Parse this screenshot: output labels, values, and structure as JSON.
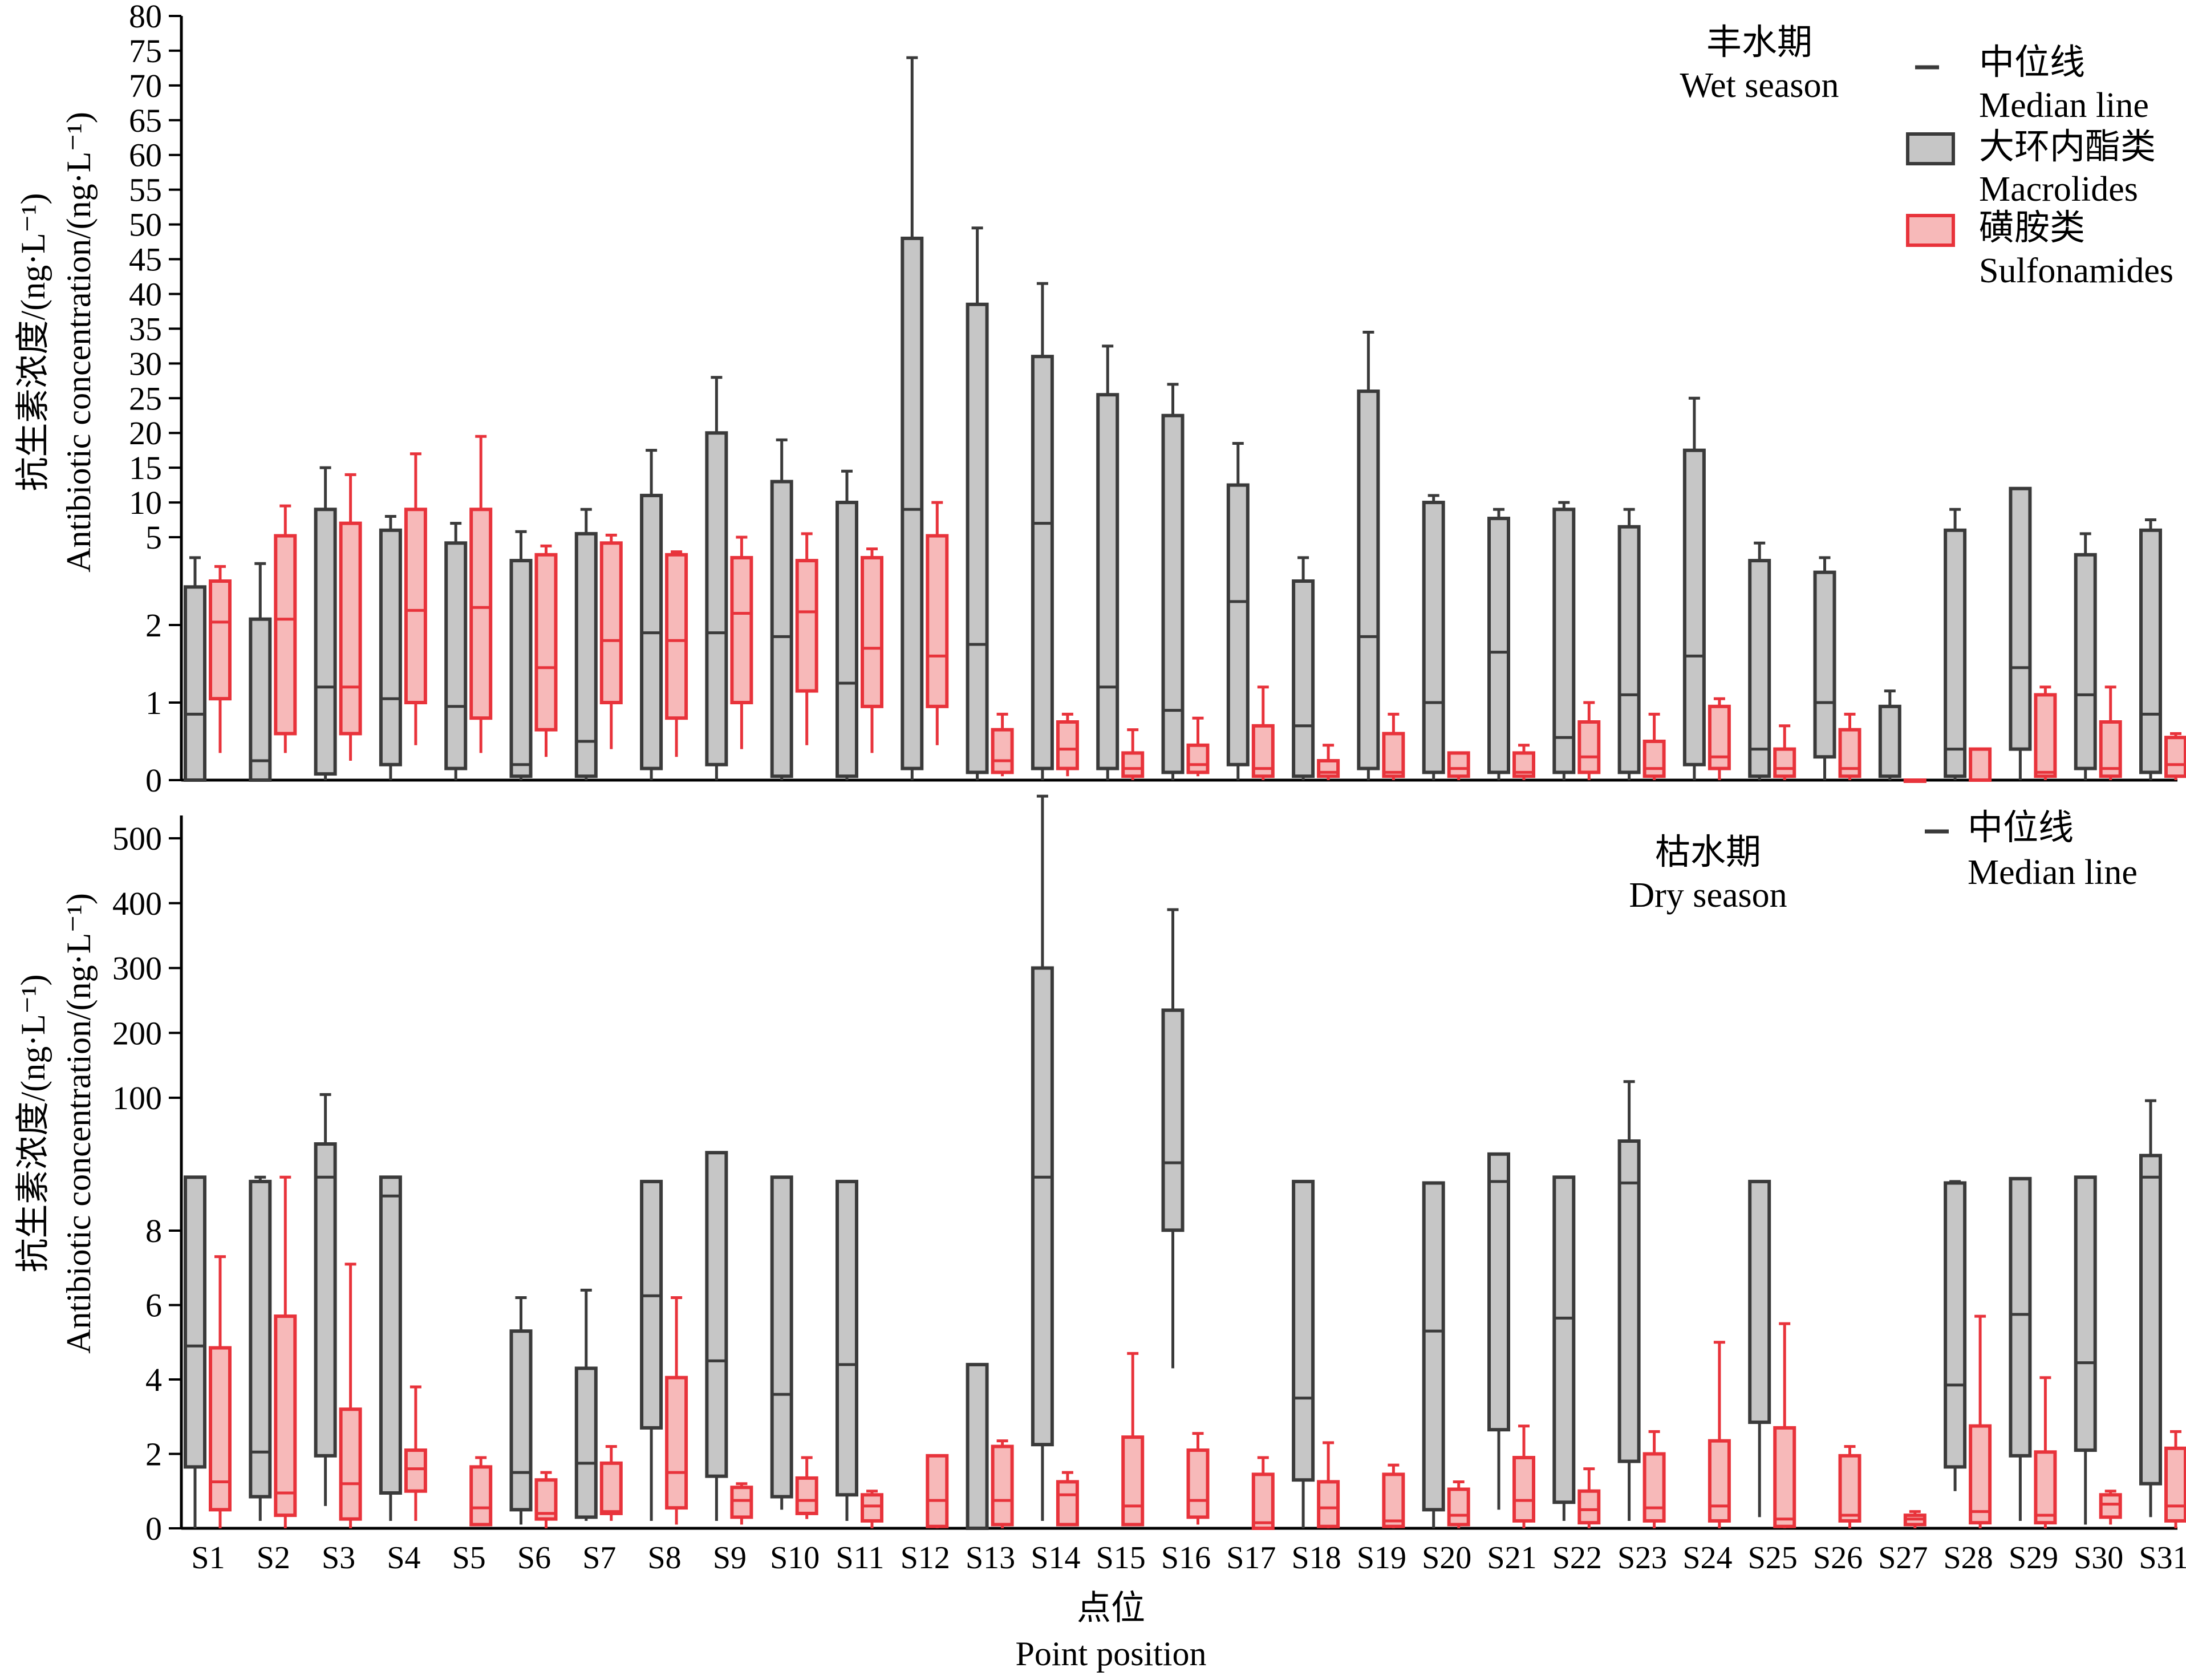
{
  "chart_data": [
    {
      "type": "box",
      "panel": "top",
      "title_cn": "丰水期",
      "title_en": "Wet season",
      "ylabel_cn": "抗生素浓度/(ng·L⁻¹)",
      "ylabel_en": "Antibiotic concentration/(ng·L⁻¹)",
      "y_ticks": [
        0,
        1,
        2,
        5,
        10,
        15,
        20,
        25,
        30,
        35,
        40,
        45,
        50,
        55,
        60,
        65,
        70,
        75,
        80
      ],
      "y_tick_labels": [
        "0",
        "1",
        "2",
        "5",
        "10",
        "15",
        "20",
        "25",
        "30",
        "35",
        "40",
        "45",
        "50",
        "55",
        "60",
        "65",
        "70",
        "75",
        "80"
      ],
      "y_scale": "piecewise: linear 0-2, then compressed 2-5, linear 5-80",
      "legend": {
        "median_cn": "中位线",
        "median_en": "Median line",
        "macrolides_cn": "大环内酯类",
        "macrolides_en": "Macrolides",
        "sulfonamides_cn": "磺胺类",
        "sulfonamides_en": "Sulfonamides"
      },
      "categories": [
        "S1",
        "S2",
        "S3",
        "S4",
        "S5",
        "S6",
        "S7",
        "S8",
        "S9",
        "S10",
        "S11",
        "S12",
        "S13",
        "S14",
        "S15",
        "S16",
        "S17",
        "S18",
        "S19",
        "S20",
        "S21",
        "S22",
        "S23",
        "S24",
        "S25",
        "S26",
        "S27",
        "S28",
        "S29",
        "S30",
        "S31"
      ],
      "series": [
        {
          "name": "Macrolides",
          "box": [
            [
              0,
              3.3,
              0.85,
              0,
              4.3
            ],
            [
              0,
              2.2,
              0.25,
              0,
              4.1
            ],
            [
              0.08,
              9,
              1.2,
              0,
              15
            ],
            [
              0.2,
              6,
              1.05,
              0,
              8
            ],
            [
              0.15,
              4.8,
              0.95,
              0,
              7
            ],
            [
              0.05,
              4.2,
              0.2,
              0,
              5.8
            ],
            [
              0.05,
              5.5,
              0.5,
              0,
              9
            ],
            [
              0.15,
              11,
              1.9,
              0,
              17.5
            ],
            [
              0.2,
              20,
              1.9,
              0,
              28
            ],
            [
              0.05,
              13,
              1.85,
              0,
              19
            ],
            [
              0.05,
              10,
              1.25,
              0,
              14.5
            ],
            [
              0.15,
              48,
              9,
              0,
              74
            ],
            [
              0.1,
              38.5,
              1.75,
              0,
              49.5
            ],
            [
              0.15,
              31,
              7,
              0,
              41.5
            ],
            [
              0.15,
              25.5,
              1.2,
              0,
              32.5
            ],
            [
              0.1,
              22.5,
              0.9,
              0,
              27
            ],
            [
              0.2,
              12.5,
              2.8,
              0,
              18.5
            ],
            [
              0.05,
              3.5,
              0.7,
              0,
              4.3
            ],
            [
              0.15,
              26,
              1.85,
              0,
              34.5
            ],
            [
              0.1,
              10,
              1,
              0,
              11
            ],
            [
              0.1,
              7.7,
              1.65,
              0,
              9
            ],
            [
              0.1,
              9,
              0.55,
              0,
              10
            ],
            [
              0.1,
              6.5,
              1.1,
              0,
              9
            ],
            [
              0.2,
              17.5,
              1.6,
              0,
              25
            ],
            [
              0.05,
              4.2,
              0.4,
              0,
              4.8
            ],
            [
              0.3,
              3.8,
              1,
              0,
              4.3
            ],
            [
              0.05,
              0.95,
              0.05,
              0,
              1.15
            ],
            [
              0.05,
              6,
              0.4,
              0,
              9
            ],
            [
              0.4,
              12,
              1.45,
              0,
              12
            ],
            [
              0.15,
              4.4,
              1.1,
              0,
              5.5
            ],
            [
              0.1,
              6,
              0.85,
              0,
              7.5
            ]
          ]
        },
        {
          "name": "Sulfonamides",
          "box": [
            [
              1.05,
              3.5,
              2.1,
              0.35,
              4
            ],
            [
              0.6,
              5.2,
              2.2,
              0.35,
              9.5
            ],
            [
              0.6,
              7,
              1.2,
              0.25,
              14
            ],
            [
              1,
              9,
              2.5,
              0.45,
              17
            ],
            [
              0.8,
              9,
              2.6,
              0.35,
              19.5
            ],
            [
              0.65,
              4.4,
              1.45,
              0.3,
              4.7
            ],
            [
              1,
              4.8,
              1.8,
              0.4,
              5.3
            ],
            [
              0.8,
              4.4,
              1.8,
              0.3,
              4.5
            ],
            [
              1,
              4.3,
              2.4,
              0.4,
              5
            ],
            [
              1.15,
              4.2,
              2.45,
              0.45,
              5.5
            ],
            [
              0.95,
              4.3,
              1.7,
              0.35,
              4.6
            ],
            [
              0.95,
              5.2,
              1.6,
              0.45,
              10
            ],
            [
              0.1,
              0.65,
              0.25,
              0.05,
              0.85
            ],
            [
              0.15,
              0.75,
              0.4,
              0.05,
              0.85
            ],
            [
              0.05,
              0.35,
              0.15,
              0,
              0.65
            ],
            [
              0.1,
              0.45,
              0.2,
              0.05,
              0.8
            ],
            [
              0.05,
              0.7,
              0.15,
              0,
              1.2
            ],
            [
              0.05,
              0.25,
              0.1,
              0,
              0.45
            ],
            [
              0.05,
              0.6,
              0.1,
              0,
              0.85
            ],
            [
              0.05,
              0.35,
              0.15,
              0,
              0.35
            ],
            [
              0.05,
              0.35,
              0.1,
              0,
              0.45
            ],
            [
              0.1,
              0.75,
              0.3,
              0,
              1
            ],
            [
              0.05,
              0.5,
              0.15,
              0,
              0.85
            ],
            [
              0.15,
              0.95,
              0.3,
              0,
              1.05
            ],
            [
              0.05,
              0.4,
              0.15,
              0,
              0.7
            ],
            [
              0.05,
              0.65,
              0.15,
              0,
              0.85
            ],
            [
              0,
              0,
              0,
              0,
              0
            ],
            [
              0,
              0.4,
              0,
              0,
              0.4
            ],
            [
              0.05,
              1.1,
              0.1,
              0,
              1.2
            ],
            [
              0.05,
              0.75,
              0.15,
              0,
              1.2
            ],
            [
              0.05,
              0.55,
              0.2,
              0,
              0.6
            ]
          ]
        }
      ]
    },
    {
      "type": "box",
      "panel": "bottom",
      "title_cn": "枯水期",
      "title_en": "Dry season",
      "xlabel_cn": "点位",
      "xlabel_en": "Point position",
      "ylabel_cn": "抗生素浓度/(ng·L⁻¹)",
      "ylabel_en": "Antibiotic concentration/(ng·L⁻¹)",
      "y_ticks": [
        0,
        2,
        4,
        6,
        8,
        100,
        200,
        300,
        400,
        500
      ],
      "y_tick_labels": [
        "0",
        "2",
        "4",
        "6",
        "8",
        "100",
        "200",
        "300",
        "400",
        "500"
      ],
      "y_scale": "piecewise: linear 0-8, compressed 8-100, linear 100-500",
      "legend": {
        "median_cn": "中位线",
        "median_en": "Median line"
      },
      "categories": [
        "S1",
        "S2",
        "S3",
        "S4",
        "S5",
        "S6",
        "S7",
        "S8",
        "S9",
        "S10",
        "S11",
        "S12",
        "S13",
        "S14",
        "S15",
        "S16",
        "S17",
        "S18",
        "S19",
        "S20",
        "S21",
        "S22",
        "S23",
        "S24",
        "S25",
        "S26",
        "S27",
        "S28",
        "S29",
        "S30",
        "S31"
      ],
      "series": [
        {
          "name": "Macrolides",
          "box": [
            [
              1.65,
              45,
              4.9,
              0,
              45
            ],
            [
              0.85,
              42,
              2.05,
              0.2,
              45
            ],
            [
              1.95,
              68,
              45,
              0.6,
              105
            ],
            [
              0.95,
              45,
              32,
              0.2,
              45
            ],
            null,
            [
              0.5,
              5.3,
              1.5,
              0.1,
              6.2
            ],
            [
              0.3,
              4.3,
              1.75,
              0.2,
              6.4
            ],
            [
              2.7,
              42,
              6.25,
              0.2,
              42
            ],
            [
              1.4,
              62,
              4.5,
              0.2,
              62
            ],
            [
              0.85,
              45,
              3.6,
              0.5,
              45
            ],
            [
              0.9,
              42,
              4.4,
              0.2,
              42
            ],
            null,
            [
              0,
              4.4,
              0,
              0,
              4.4
            ],
            [
              2.25,
              300,
              45,
              0.2,
              565
            ],
            null,
            [
              8.3,
              235,
              55,
              4.3,
              390
            ],
            null,
            [
              1.3,
              42,
              3.5,
              0,
              42
            ],
            null,
            [
              0.5,
              41,
              5.3,
              0,
              41
            ],
            [
              2.65,
              61,
              42,
              0.5,
              61
            ],
            [
              0.7,
              45,
              5.65,
              0.2,
              45
            ],
            [
              1.8,
              70,
              41,
              0.2,
              125
            ],
            null,
            [
              2.85,
              42,
              42,
              0.3,
              42
            ],
            null,
            null,
            [
              1.65,
              41,
              3.85,
              1,
              42
            ],
            [
              1.95,
              44,
              5.75,
              0.2,
              44
            ],
            [
              2.1,
              45,
              4.45,
              0.1,
              45
            ],
            [
              1.2,
              60,
              45,
              0.3,
              98
            ]
          ]
        },
        {
          "name": "Sulfonamides",
          "box": [
            [
              0.5,
              4.85,
              1.25,
              0,
              7.3
            ],
            [
              0.35,
              5.7,
              0.95,
              0,
              45
            ],
            [
              0.25,
              3.2,
              1.2,
              0,
              7.1
            ],
            [
              1,
              2.1,
              1.6,
              0.2,
              3.8
            ],
            [
              0.1,
              1.65,
              0.55,
              0.1,
              1.9
            ],
            [
              0.25,
              1.3,
              0.4,
              0,
              1.5
            ],
            [
              0.4,
              1.75,
              0.45,
              0.2,
              2.2
            ],
            [
              0.55,
              4.05,
              1.5,
              0.1,
              6.2
            ],
            [
              0.3,
              1.1,
              0.75,
              0.1,
              1.2
            ],
            [
              0.4,
              1.35,
              0.75,
              0.25,
              1.9
            ],
            [
              0.2,
              0.9,
              0.6,
              0,
              1
            ],
            [
              0.05,
              1.95,
              0.75,
              0,
              1.95
            ],
            [
              0.1,
              2.2,
              0.75,
              0,
              2.35
            ],
            [
              0.1,
              1.25,
              0.9,
              0.1,
              1.5
            ],
            [
              0.1,
              2.45,
              0.6,
              0.1,
              4.7
            ],
            [
              0.3,
              2.1,
              0.75,
              0.1,
              2.55
            ],
            [
              0,
              1.45,
              0.15,
              0,
              1.9
            ],
            [
              0.05,
              1.25,
              0.55,
              0,
              2.3
            ],
            [
              0.05,
              1.45,
              0.2,
              0,
              1.7
            ],
            [
              0.1,
              1.05,
              0.35,
              0,
              1.25
            ],
            [
              0.2,
              1.9,
              0.75,
              0,
              2.75
            ],
            [
              0.15,
              1,
              0.5,
              0,
              1.6
            ],
            [
              0.2,
              2,
              0.55,
              0,
              2.6
            ],
            [
              0.2,
              2.35,
              0.6,
              0,
              5
            ],
            [
              0.05,
              2.7,
              0.25,
              0,
              5.5
            ],
            [
              0.2,
              1.95,
              0.35,
              0,
              2.2
            ],
            [
              0.1,
              0.35,
              0.25,
              0,
              0.45
            ],
            [
              0.15,
              2.75,
              0.45,
              0,
              5.7
            ],
            [
              0.15,
              2.05,
              0.35,
              0,
              4.05
            ],
            [
              0.3,
              0.9,
              0.65,
              0.1,
              1
            ],
            [
              0.2,
              2.15,
              0.6,
              0,
              2.6
            ]
          ]
        }
      ]
    }
  ],
  "colors": {
    "macrolides_fill": "#c6c6c6",
    "macrolides_stroke": "#3a3a3a",
    "sulfonamides_fill": "#f7b9b9",
    "sulfonamides_stroke": "#e8333b"
  }
}
